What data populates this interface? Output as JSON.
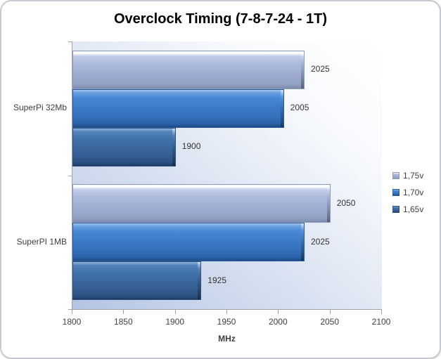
{
  "chart_data": {
    "type": "bar",
    "orientation": "horizontal",
    "title": "Overclock Timing (7-8-7-24 - 1T)",
    "xlabel": "MHz",
    "categories": [
      "SuperPi 32Mb",
      "SuperPI 1MB"
    ],
    "series": [
      {
        "name": "1,75v",
        "color": "#aab8dc",
        "values": [
          2025,
          2050
        ]
      },
      {
        "name": "1,70v",
        "color": "#3d7cc9",
        "values": [
          2005,
          2025
        ]
      },
      {
        "name": "1,65v",
        "color": "#38639c",
        "values": [
          1900,
          1925
        ]
      }
    ],
    "xlim": [
      1800,
      2100
    ],
    "xticks": [
      1800,
      1850,
      1900,
      1950,
      2000,
      2050,
      2100
    ],
    "grid": false,
    "data_labels": true,
    "legend_position": "right",
    "axis_color": "#9fa4ab",
    "text_color": "#3f3f3f"
  }
}
